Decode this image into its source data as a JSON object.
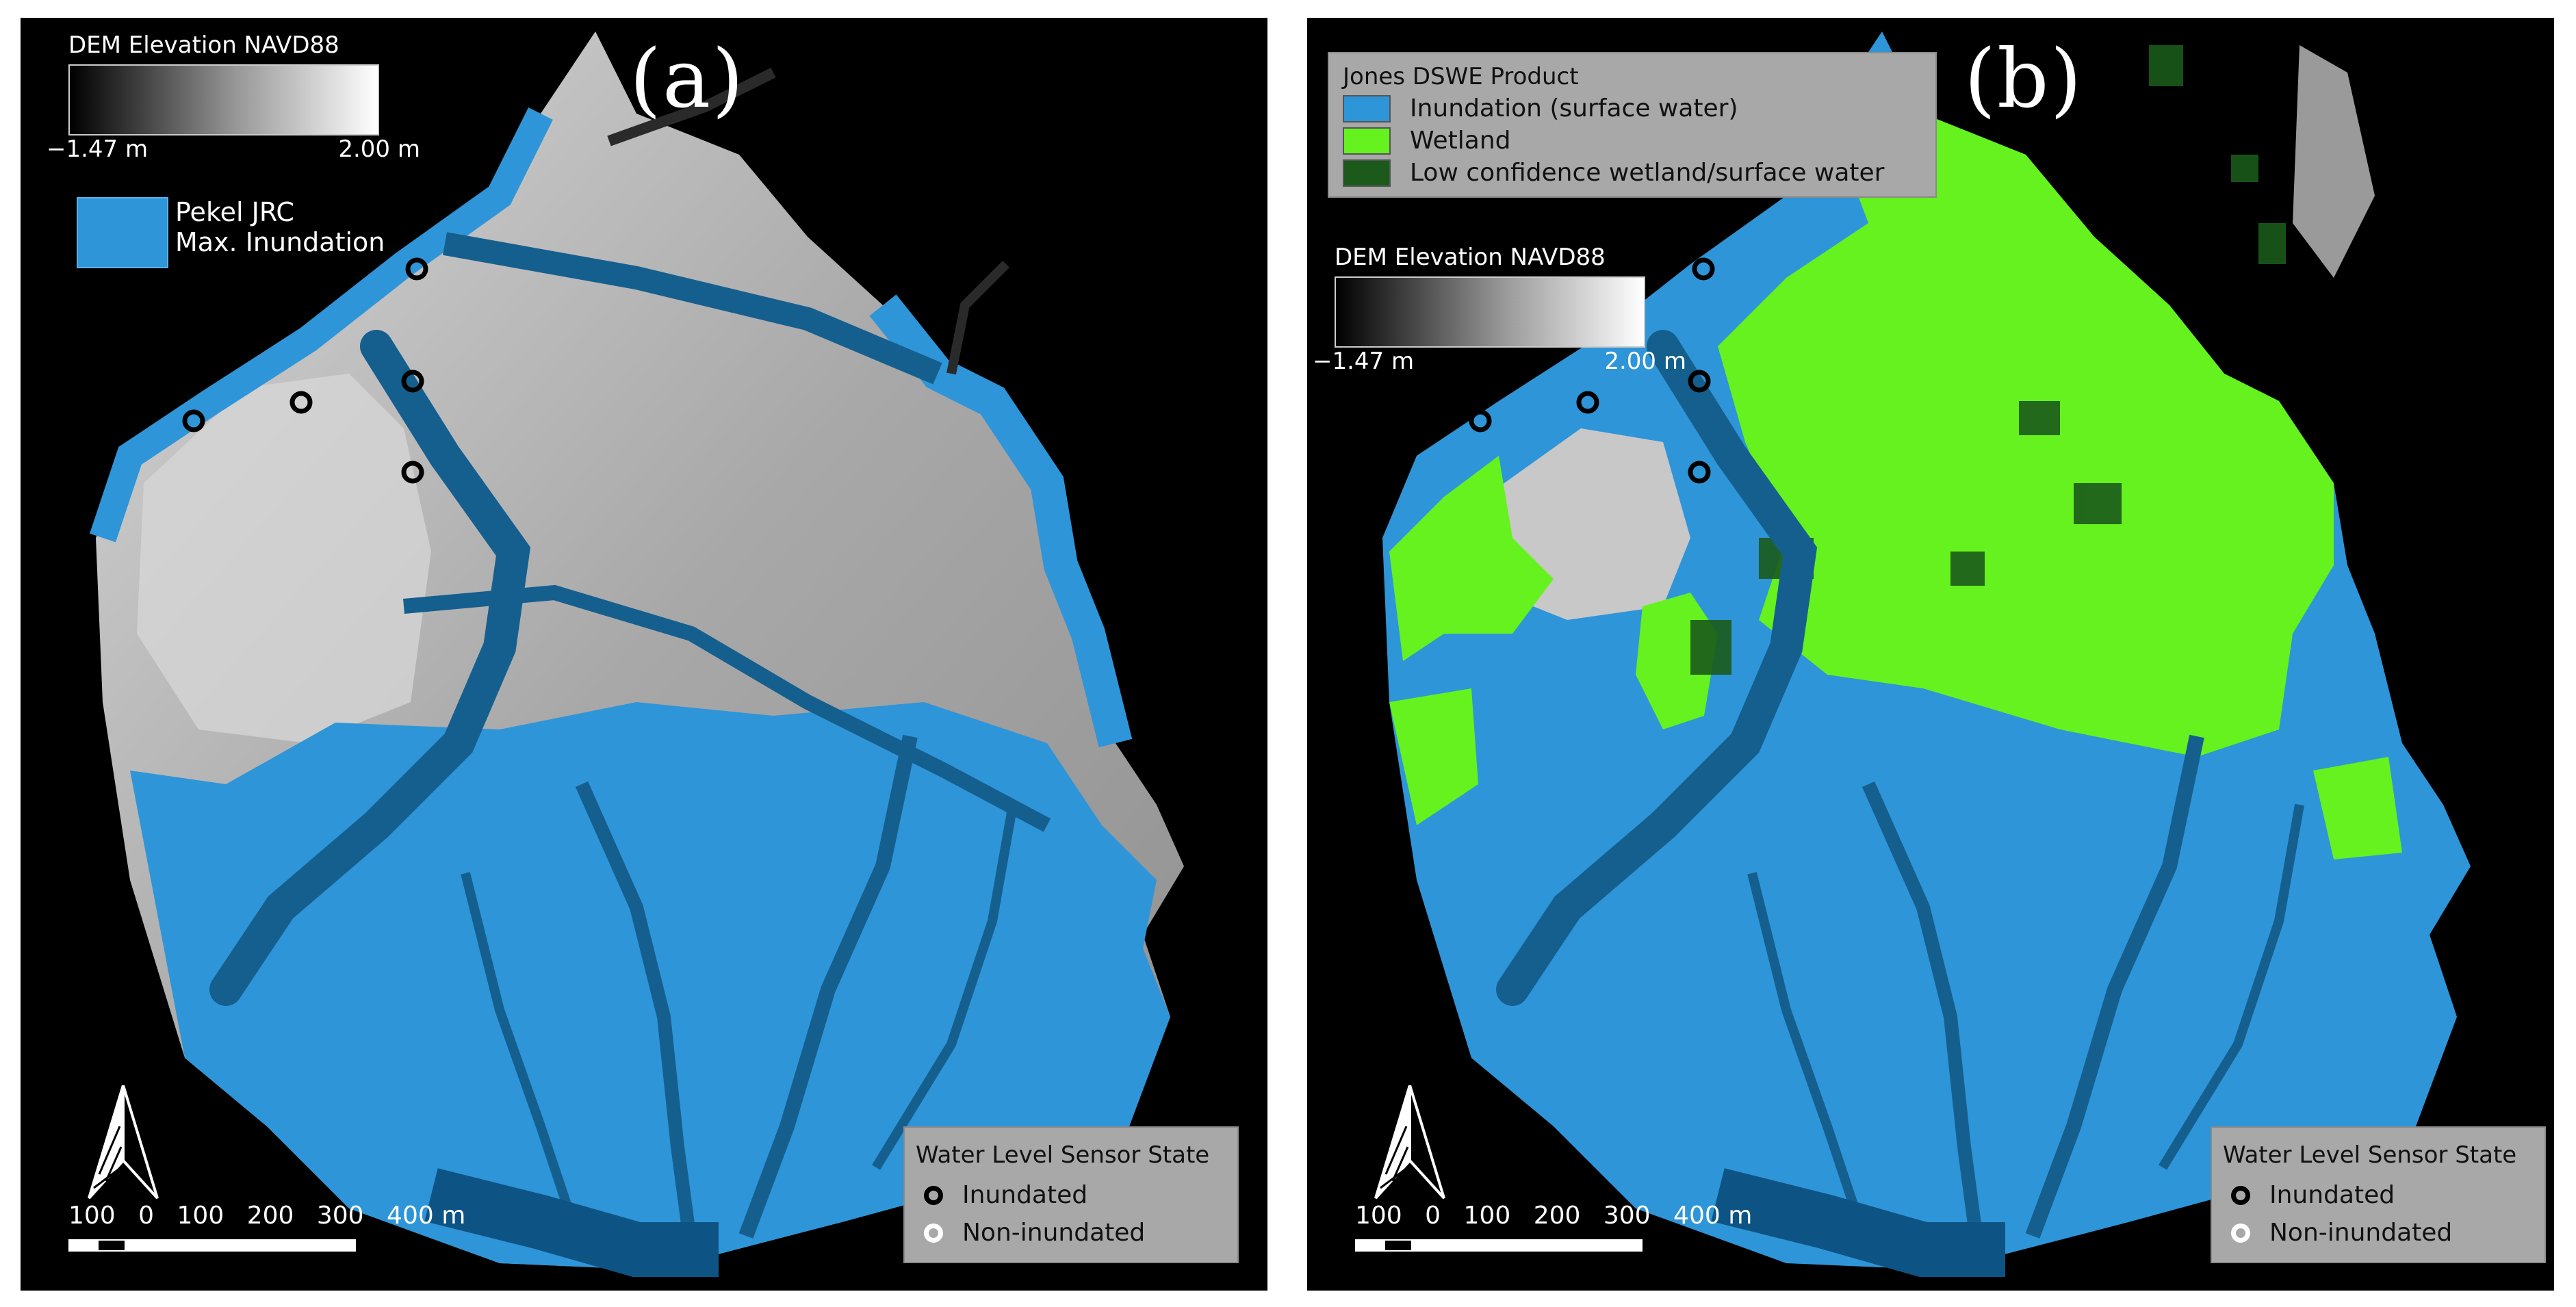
{
  "panels": [
    {
      "label": "(a)",
      "dem_legend": {
        "title": "DEM Elevation NAVD88",
        "min": "−1.47 m",
        "max": "2.00 m"
      },
      "pekel_legend": {
        "lines": [
          "Pekel JRC",
          "Max. Inundation"
        ],
        "color": "#2e95d8"
      },
      "sensor_legend": {
        "title": "Water Level Sensor State",
        "items": [
          "Inundated",
          "Non-inundated"
        ]
      },
      "scalebar": {
        "labels": [
          "100",
          "0",
          "100",
          "200",
          "300",
          "400 m"
        ]
      }
    },
    {
      "label": "(b)",
      "dswe_legend": {
        "title": "Jones DSWE Product",
        "items": [
          {
            "label": "Inundation (surface water)",
            "color": "#2e95d8"
          },
          {
            "label": "Wetland",
            "color": "#66f21e"
          },
          {
            "label": "Low confidence wetland/surface water",
            "color": "#1b5a1b"
          }
        ]
      },
      "dem_legend": {
        "title": "DEM Elevation NAVD88",
        "min": "−1.47 m",
        "max": "2.00 m"
      },
      "sensor_legend": {
        "title": "Water Level Sensor State",
        "items": [
          "Inundated",
          "Non-inundated"
        ]
      },
      "scalebar": {
        "labels": [
          "100",
          "0",
          "100",
          "200",
          "300",
          "400 m"
        ]
      }
    }
  ],
  "colors": {
    "water": "#2e95d8",
    "channel": "#155f8f",
    "wetland": "#66f21e",
    "low_confidence": "#1b5a1b",
    "dem_high": "#c9c9c9",
    "background": "#000000"
  },
  "icons": [
    "north-arrow-icon",
    "inundated-ring-icon",
    "non-inundated-ring-icon"
  ]
}
